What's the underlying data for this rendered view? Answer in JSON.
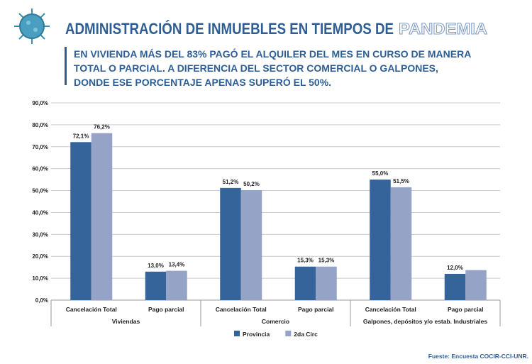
{
  "chart_data": {
    "type": "bar",
    "title": "ADMINISTRACIÓN DE INMUEBLES EN TIEMPOS DE",
    "title_highlight": "PANDEMIA",
    "subtitle": "EN VIVIENDA MÁS DEL 83% PAGÓ EL ALQUILER DEL MES EN CURSO DE MANERA TOTAL O PARCIAL. A DIFERENCIA DEL SECTOR COMERCIAL O GALPONES, DONDE ESE PORCENTAJE APENAS SUPERÓ EL 50%.",
    "groups": [
      {
        "name": "Viviendas",
        "categories": [
          "Cancelación Total",
          "Pago parcial"
        ]
      },
      {
        "name": "Comercio",
        "categories": [
          "Cancelación Total",
          "Pago parcial"
        ]
      },
      {
        "name": "Galpones, depósitos y/o estab. Industriales",
        "categories": [
          "Cancelación Total",
          "Pago parcial"
        ]
      }
    ],
    "series": [
      {
        "name": "Provincia",
        "color": "#35649a",
        "values": [
          72.1,
          13.0,
          51.2,
          15.3,
          55.0,
          12.0
        ],
        "value_labels": [
          "72,1%",
          "13,0%",
          "51,2%",
          "15,3%",
          "55,0%",
          "12,0%"
        ]
      },
      {
        "name": "2da Circ",
        "color": "#94a3c6",
        "values": [
          76.2,
          13.4,
          50.2,
          15.3,
          51.5,
          13.7
        ],
        "value_labels": [
          "76,2%",
          "13,4%",
          "50,2%",
          "15,3%",
          "51,5%",
          null
        ]
      }
    ],
    "ylim": [
      0,
      90
    ],
    "yticks": [
      {
        "value": 0,
        "label": "0,0%"
      },
      {
        "value": 10,
        "label": "10,0%"
      },
      {
        "value": 20,
        "label": "20,0%"
      },
      {
        "value": 30,
        "label": "30,0%"
      },
      {
        "value": 40,
        "label": "40,0%"
      },
      {
        "value": 50,
        "label": "50,0%"
      },
      {
        "value": 60,
        "label": "60,0%"
      },
      {
        "value": 70,
        "label": "70,0%"
      },
      {
        "value": 80,
        "label": "80,0%"
      },
      {
        "value": 90,
        "label": "90,0%"
      }
    ],
    "grid": true,
    "legend": "bottom",
    "source": "Fueste: Encuesta COCIR-CCI-UNR."
  }
}
